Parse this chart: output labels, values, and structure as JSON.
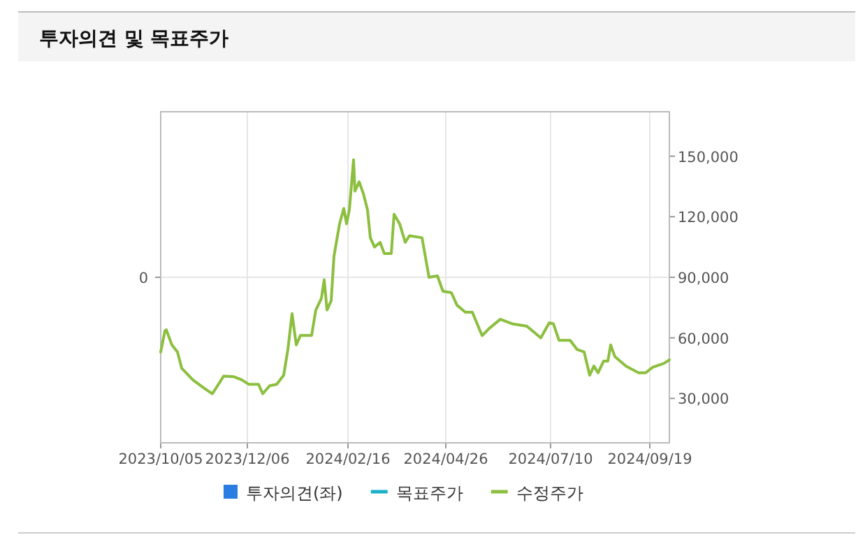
{
  "chart_data": {
    "type": "line",
    "title": "투자의견 및 목표주가",
    "xlim": [
      "2023-10-05",
      "2024-10-03"
    ],
    "xticks": [
      {
        "value": "2023-10-05",
        "label": "2023/10/05"
      },
      {
        "value": "2023-12-06",
        "label": "2023/12/06"
      },
      {
        "value": "2024-02-16",
        "label": "2024/02/16"
      },
      {
        "value": "2024-04-26",
        "label": "2024/04/26"
      },
      {
        "value": "2024-07-10",
        "label": "2024/07/10"
      },
      {
        "value": "2024-09-19",
        "label": "2024/09/19"
      }
    ],
    "annotations": [
      "0"
    ],
    "y2lim": [
      8000,
      172000
    ],
    "y2ticks": [
      {
        "value": 30000,
        "label": "30,000"
      },
      {
        "value": 60000,
        "label": "60,000"
      },
      {
        "value": 90000,
        "label": "90,000"
      },
      {
        "value": 120000,
        "label": "120,000"
      },
      {
        "value": 150000,
        "label": "150,000"
      }
    ],
    "grid": true,
    "legend": "bottom",
    "series": [
      {
        "name": "투자의견(좌)",
        "type": "bar",
        "color": "#2a7de1"
      },
      {
        "name": "목표주가",
        "type": "line",
        "axis": "y2",
        "color": "#1ab0c8"
      },
      {
        "name": "수정주가",
        "axis": "y2",
        "color": "#8cbf3f",
        "x": [
          "2023-10-05",
          "2023-10-08",
          "2023-10-09",
          "2023-10-13",
          "2023-10-17",
          "2023-10-20",
          "2023-10-28",
          "2023-11-06",
          "2023-11-11",
          "2023-11-19",
          "2023-11-26",
          "2023-12-02",
          "2023-12-07",
          "2023-12-14",
          "2023-12-17",
          "2023-12-22",
          "2023-12-27",
          "2024-01-01",
          "2024-01-04",
          "2024-01-07",
          "2024-01-10",
          "2024-01-13",
          "2024-01-21",
          "2024-01-24",
          "2024-01-28",
          "2024-01-30",
          "2024-02-01",
          "2024-02-04",
          "2024-02-06",
          "2024-02-10",
          "2024-02-13",
          "2024-02-15",
          "2024-02-17",
          "2024-02-20",
          "2024-02-21",
          "2024-02-24",
          "2024-02-27",
          "2024-03-01",
          "2024-03-03",
          "2024-03-06",
          "2024-03-10",
          "2024-03-13",
          "2024-03-18",
          "2024-03-20",
          "2024-03-24",
          "2024-03-28",
          "2024-03-31",
          "2024-04-09",
          "2024-04-14",
          "2024-04-20",
          "2024-04-24",
          "2024-04-30",
          "2024-05-04",
          "2024-05-10",
          "2024-05-15",
          "2024-05-22",
          "2024-05-27",
          "2024-06-04",
          "2024-06-13",
          "2024-06-23",
          "2024-07-03",
          "2024-07-09",
          "2024-07-12",
          "2024-07-16",
          "2024-07-24",
          "2024-07-29",
          "2024-08-03",
          "2024-08-07",
          "2024-08-10",
          "2024-08-13",
          "2024-08-17",
          "2024-08-20",
          "2024-08-22",
          "2024-08-25",
          "2024-09-02",
          "2024-09-11",
          "2024-09-16",
          "2024-09-21",
          "2024-09-29",
          "2024-10-03"
        ],
        "values": [
          53000,
          63400,
          64000,
          56500,
          53000,
          45000,
          39200,
          34600,
          32300,
          41000,
          40800,
          39200,
          37000,
          37000,
          32300,
          36300,
          37000,
          41500,
          54200,
          72000,
          56500,
          61200,
          61200,
          73800,
          79600,
          88800,
          73800,
          78400,
          100400,
          116500,
          124100,
          116500,
          123400,
          148200,
          132700,
          137300,
          131500,
          123400,
          109600,
          105000,
          107300,
          101800,
          101800,
          121200,
          116500,
          107300,
          110600,
          109600,
          90000,
          90700,
          83100,
          82400,
          76200,
          72700,
          72700,
          61100,
          64600,
          69200,
          66900,
          65800,
          60000,
          67400,
          67000,
          58800,
          58800,
          54200,
          53000,
          41500,
          46000,
          42700,
          48500,
          48500,
          56500,
          50700,
          46000,
          42700,
          42700,
          45400,
          47300,
          49100
        ]
      }
    ]
  }
}
